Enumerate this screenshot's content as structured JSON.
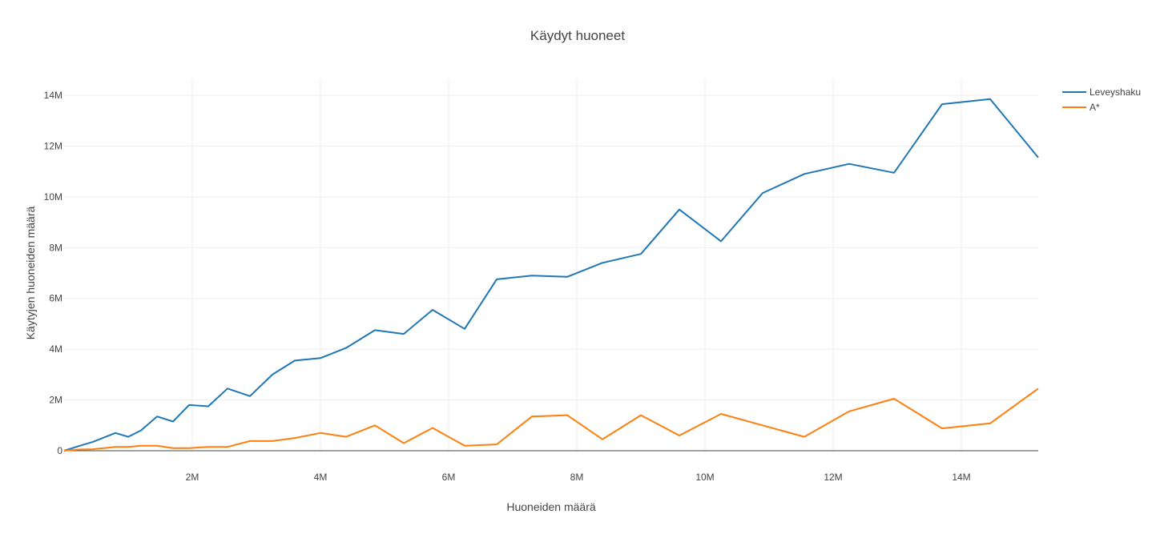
{
  "chart_data": {
    "type": "line",
    "title": "Käydyt huoneet",
    "xlabel": "Huoneiden määrä",
    "ylabel": "Käytyjen huoneiden määrä",
    "xlim": [
      0,
      15200000
    ],
    "ylim": [
      0,
      14600000
    ],
    "x_ticks": [
      {
        "value": 2000000,
        "label": "2M"
      },
      {
        "value": 4000000,
        "label": "4M"
      },
      {
        "value": 6000000,
        "label": "6M"
      },
      {
        "value": 8000000,
        "label": "8M"
      },
      {
        "value": 10000000,
        "label": "10M"
      },
      {
        "value": 12000000,
        "label": "12M"
      },
      {
        "value": 14000000,
        "label": "14M"
      }
    ],
    "y_ticks": [
      {
        "value": 0,
        "label": "0"
      },
      {
        "value": 2000000,
        "label": "2M"
      },
      {
        "value": 4000000,
        "label": "4M"
      },
      {
        "value": 6000000,
        "label": "6M"
      },
      {
        "value": 8000000,
        "label": "8M"
      },
      {
        "value": 10000000,
        "label": "10M"
      },
      {
        "value": 12000000,
        "label": "12M"
      },
      {
        "value": 14000000,
        "label": "14M"
      }
    ],
    "grid": true,
    "legend_position": "top-right",
    "series": [
      {
        "name": "Leveyshaku",
        "color": "#1f77b4",
        "x": [
          0,
          250000,
          450000,
          800000,
          1000000,
          1200000,
          1450000,
          1700000,
          1950000,
          2250000,
          2550000,
          2900000,
          3250000,
          3600000,
          4000000,
          4400000,
          4850000,
          5300000,
          5750000,
          6250000,
          6750000,
          7300000,
          7850000,
          8400000,
          9000000,
          9600000,
          10250000,
          10900000,
          11550000,
          12250000,
          12950000,
          13700000,
          14450000,
          15200000
        ],
        "y": [
          0,
          200000,
          350000,
          700000,
          550000,
          800000,
          1350000,
          1150000,
          1800000,
          1750000,
          2450000,
          2150000,
          3000000,
          3550000,
          3650000,
          4050000,
          4750000,
          4600000,
          5550000,
          4800000,
          6750000,
          6900000,
          6850000,
          7400000,
          7750000,
          9500000,
          8250000,
          10150000,
          10900000,
          11300000,
          10950000,
          13650000,
          13850000,
          11550000
        ]
      },
      {
        "name": "A*",
        "color": "#ff7f0e",
        "x": [
          0,
          250000,
          450000,
          800000,
          1000000,
          1200000,
          1450000,
          1700000,
          1950000,
          2250000,
          2550000,
          2900000,
          3250000,
          3600000,
          4000000,
          4400000,
          4850000,
          5300000,
          5750000,
          6250000,
          6750000,
          7300000,
          7850000,
          8400000,
          9000000,
          9600000,
          10250000,
          10900000,
          11550000,
          12250000,
          12950000,
          13700000,
          14450000,
          15200000
        ],
        "y": [
          0,
          50000,
          60000,
          150000,
          150000,
          200000,
          200000,
          100000,
          100000,
          150000,
          150000,
          380000,
          380000,
          500000,
          700000,
          550000,
          1000000,
          300000,
          900000,
          200000,
          250000,
          1350000,
          1400000,
          450000,
          1400000,
          600000,
          1450000,
          1000000,
          550000,
          1550000,
          2050000,
          880000,
          1080000,
          2450000
        ]
      }
    ]
  }
}
